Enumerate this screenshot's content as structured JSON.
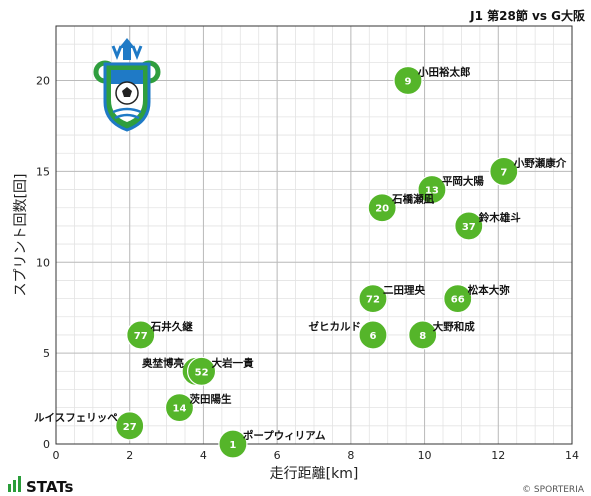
{
  "header": {
    "title": "J1 第28節 vs G大阪"
  },
  "footer": {
    "brand": "STATs",
    "copyright": "© SPORTERIA"
  },
  "colors": {
    "point": "#55b52a",
    "grid_major": "#bbbbbb",
    "grid_minor": "#e3e3e3",
    "logo_green": "#2f9e3e",
    "logo_blue": "#1f7ac6"
  },
  "chart_data": {
    "type": "scatter",
    "title": "J1 第28節 vs G大阪",
    "xlabel": "走行距離[km]",
    "ylabel": "スプリント回数[回]",
    "xlim": [
      0,
      14
    ],
    "ylim": [
      0,
      23
    ],
    "xticks": [
      0,
      2,
      4,
      6,
      8,
      10,
      12,
      14
    ],
    "yticks": [
      0,
      5,
      10,
      15,
      20
    ],
    "grid": true,
    "points": [
      {
        "number": "9",
        "name": "小田裕太郎",
        "x": 9.55,
        "y": 20
      },
      {
        "number": "7",
        "name": "小野瀬康介",
        "x": 12.15,
        "y": 15
      },
      {
        "number": "13",
        "name": "平岡大陽",
        "x": 10.2,
        "y": 14
      },
      {
        "number": "20",
        "name": "石橋瀬凪",
        "x": 8.85,
        "y": 13
      },
      {
        "number": "37",
        "name": "鈴木雄斗",
        "x": 11.2,
        "y": 12
      },
      {
        "number": "72",
        "name": "二田理央",
        "x": 8.6,
        "y": 8
      },
      {
        "number": "66",
        "name": "松本大弥",
        "x": 10.9,
        "y": 8
      },
      {
        "number": "6",
        "name": "ゼヒカルド",
        "x": 8.6,
        "y": 6
      },
      {
        "number": "8",
        "name": "大野和成",
        "x": 9.95,
        "y": 6
      },
      {
        "number": "77",
        "name": "石井久継",
        "x": 2.3,
        "y": 6
      },
      {
        "number": "25",
        "name": "奥埜博亮",
        "x": 3.8,
        "y": 4
      },
      {
        "number": "52",
        "name": "大岩一貴",
        "x": 3.95,
        "y": 4
      },
      {
        "number": "14",
        "name": "茨田陽生",
        "x": 3.35,
        "y": 2
      },
      {
        "number": "27",
        "name": "ルイスフェリッペ",
        "x": 2.0,
        "y": 1
      },
      {
        "number": "1",
        "name": "ポープウィリアム",
        "x": 4.8,
        "y": 0
      }
    ]
  }
}
